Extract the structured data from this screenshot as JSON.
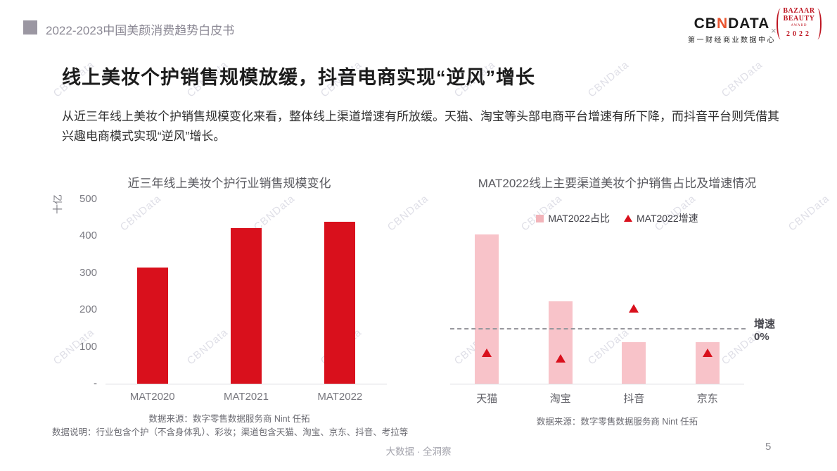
{
  "page": {
    "header": {
      "breadcrumb": "2022-2023中国美颜消费趋势白皮书"
    },
    "logos": {
      "cbndata_prefix": "CB",
      "cbndata_n": "N",
      "cbndata_suffix": "DATA",
      "cbndata_sub": "第一财经商业数据中心",
      "cross": "×",
      "award_line1": "BAZAAR",
      "award_line2": "BEAUTY",
      "award_line3": "AWARD",
      "award_year": "2022"
    },
    "title": "线上美妆个护销售规模放缓，抖音电商实现“逆风”增长",
    "intro": "从近三年线上美妆个护销售规模变化来看，整体线上渠道增速有所放缓。天猫、淘宝等头部电商平台增速有所下降，而抖音平台则凭借其兴趣电商模式实现“逆风”增长。",
    "watermark": "CBNData",
    "footer": {
      "slogan": "大数据 · 全洞察",
      "page_number": "5"
    }
  },
  "chart_data": [
    {
      "type": "bar",
      "title": "近三年线上美妆个护行业销售规模变化",
      "ylabel": "十亿",
      "categories": [
        "MAT2020",
        "MAT2021",
        "MAT2022"
      ],
      "values": [
        315,
        422,
        438
      ],
      "values_estimated": true,
      "ylim": [
        0,
        500
      ],
      "yticks": [
        {
          "label": "500",
          "value": 500
        },
        {
          "label": "400",
          "value": 400
        },
        {
          "label": "300",
          "value": 300
        },
        {
          "label": "200",
          "value": 200
        },
        {
          "label": "100",
          "value": 100
        },
        {
          "label": "-",
          "value": 0
        }
      ],
      "bar_color": "#d9101c",
      "grid": false,
      "source": "数据来源：数字零售数据服务商 Nint 任拓",
      "note": "数据说明：行业包含个护（不含身体乳）、彩妆；渠道包含天猫、淘宝、京东、抖音、考拉等"
    },
    {
      "type": "bar",
      "title": "MAT2022线上主要渠道美妆个护销售占比及增速情况",
      "categories": [
        "天猫",
        "淘宝",
        "抖音",
        "京东"
      ],
      "series": [
        {
          "name": "MAT2022占比",
          "type": "bar",
          "unit": "%",
          "values": [
            47,
            26,
            13,
            13
          ],
          "values_estimated": true,
          "color": "#f8c3c9"
        },
        {
          "name": "MAT2022增速",
          "type": "triangle-marker",
          "unit": "%",
          "values": [
            -25,
            -31,
            20,
            -25
          ],
          "values_estimated": true,
          "color": "#d9101c"
        }
      ],
      "growth_zero_line": {
        "label": "增速",
        "value_label": "0%"
      },
      "legend_position": "top",
      "grid": false,
      "source": "数据来源：数字零售数据服务商 Nint 任拓"
    }
  ]
}
